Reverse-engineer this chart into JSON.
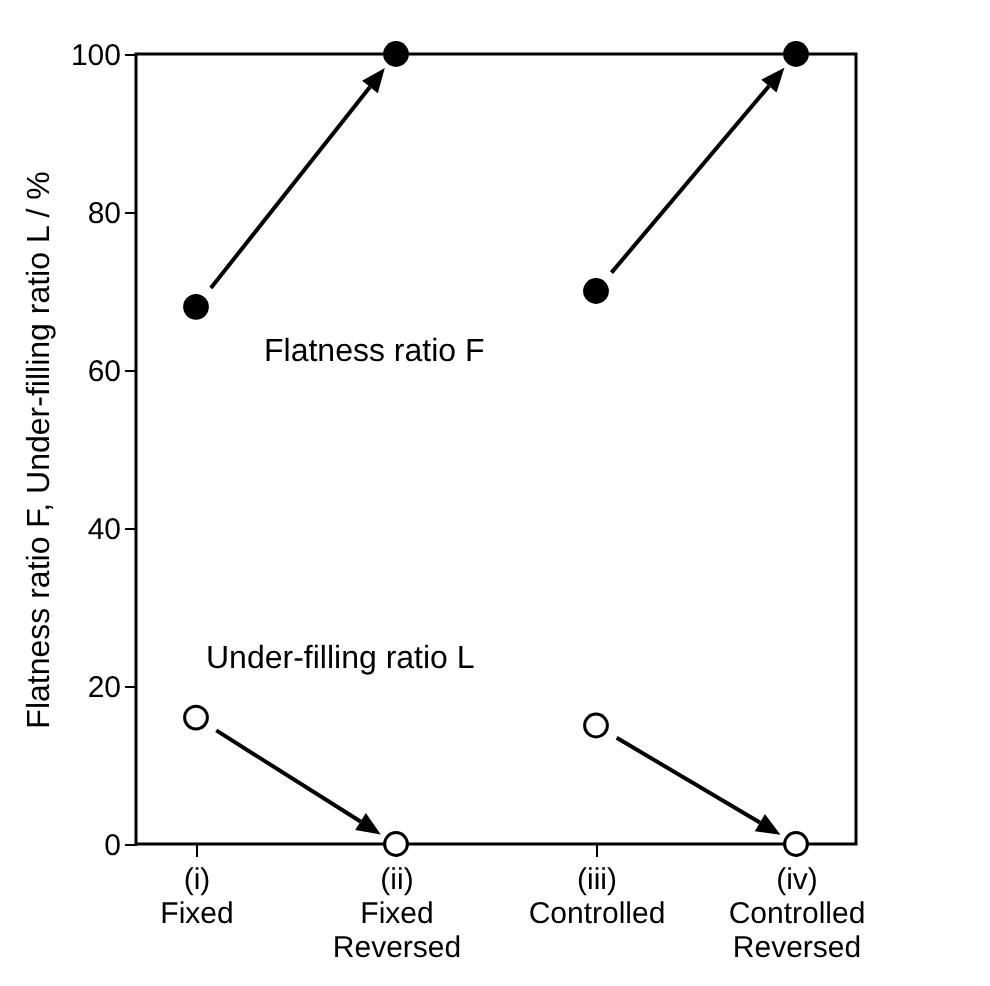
{
  "chart_data": {
    "type": "scatter",
    "ylabel": "Flatness ratio F, Under-filling ratio L / %",
    "categories": [
      "(i)\nFixed",
      "(ii)\nFixed\nReversed",
      "(iii)\nControlled",
      "(iv)\nControlled\nReversed"
    ],
    "series": [
      {
        "name": "Flatness ratio F",
        "color": "#000000",
        "marker": "circle",
        "values": [
          68,
          100,
          70,
          100
        ]
      },
      {
        "name": "Under-filling ratio L",
        "color": "#ffffff",
        "marker": "circle",
        "values": [
          16,
          0,
          15,
          0
        ]
      }
    ],
    "ylim": [
      0,
      100
    ],
    "yticks": [
      0,
      20,
      40,
      60,
      80,
      100
    ],
    "grid": false
  }
}
